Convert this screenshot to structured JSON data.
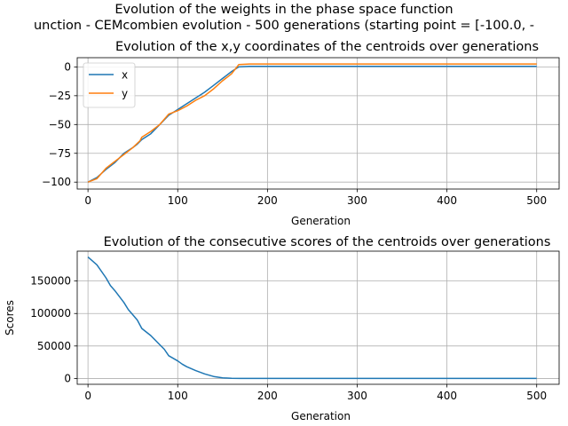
{
  "figure": {
    "title_line1": "Evolution of the weights in the phase space  function",
    "title_line2": "unction - CEMcombien evolution - 500 generations (starting point = [-100.0, -"
  },
  "chart_data": [
    {
      "type": "line",
      "title": "Evolution of the x,y coordinates of the centroids over generations",
      "xlabel": "Generation",
      "ylabel": "",
      "xlim": [
        -12,
        525
      ],
      "ylim": [
        -106,
        8
      ],
      "xticks": [
        0,
        100,
        200,
        300,
        400,
        500
      ],
      "yticks": [
        0,
        -25,
        -50,
        -75,
        -100
      ],
      "grid": true,
      "legend": "top-left",
      "series": [
        {
          "name": "x",
          "color": "#1f77b4",
          "points": [
            [
              0,
              -100
            ],
            [
              10,
              -96
            ],
            [
              20,
              -89
            ],
            [
              30,
              -83
            ],
            [
              40,
              -75
            ],
            [
              50,
              -70
            ],
            [
              55,
              -67
            ],
            [
              60,
              -63
            ],
            [
              70,
              -58
            ],
            [
              80,
              -50
            ],
            [
              90,
              -42
            ],
            [
              100,
              -37
            ],
            [
              110,
              -32
            ],
            [
              120,
              -27
            ],
            [
              130,
              -22
            ],
            [
              140,
              -16
            ],
            [
              150,
              -10
            ],
            [
              160,
              -4
            ],
            [
              168,
              0
            ],
            [
              180,
              0.5
            ],
            [
              250,
              0.5
            ],
            [
              300,
              0.5
            ],
            [
              350,
              0.5
            ],
            [
              400,
              0.5
            ],
            [
              450,
              0.5
            ],
            [
              500,
              0.5
            ]
          ]
        },
        {
          "name": "y",
          "color": "#ff7f0e",
          "points": [
            [
              0,
              -100
            ],
            [
              10,
              -97
            ],
            [
              20,
              -88
            ],
            [
              30,
              -82
            ],
            [
              40,
              -76
            ],
            [
              50,
              -70
            ],
            [
              58,
              -64
            ],
            [
              60,
              -61
            ],
            [
              70,
              -56
            ],
            [
              80,
              -50
            ],
            [
              90,
              -41
            ],
            [
              100,
              -38
            ],
            [
              110,
              -34
            ],
            [
              120,
              -29
            ],
            [
              130,
              -25
            ],
            [
              140,
              -19
            ],
            [
              150,
              -12
            ],
            [
              160,
              -6
            ],
            [
              168,
              2
            ],
            [
              180,
              2.5
            ],
            [
              250,
              2.5
            ],
            [
              300,
              2.5
            ],
            [
              350,
              2.5
            ],
            [
              400,
              2.5
            ],
            [
              450,
              2.5
            ],
            [
              500,
              2.5
            ]
          ]
        }
      ]
    },
    {
      "type": "line",
      "title": "Evolution of the consecutive scores of the centroids over generations",
      "xlabel": "Generation",
      "ylabel": "Scores",
      "xlim": [
        -12,
        525
      ],
      "ylim": [
        -9000,
        196000
      ],
      "xticks": [
        0,
        100,
        200,
        300,
        400,
        500
      ],
      "yticks": [
        0,
        50000,
        100000,
        150000
      ],
      "grid": true,
      "series": [
        {
          "name": "",
          "color": "#1f77b4",
          "points": [
            [
              0,
              187000
            ],
            [
              10,
              175000
            ],
            [
              20,
              155000
            ],
            [
              25,
              143000
            ],
            [
              30,
              135000
            ],
            [
              40,
              117000
            ],
            [
              45,
              106000
            ],
            [
              50,
              98000
            ],
            [
              55,
              90000
            ],
            [
              60,
              77000
            ],
            [
              70,
              66000
            ],
            [
              80,
              52000
            ],
            [
              85,
              45000
            ],
            [
              90,
              35000
            ],
            [
              100,
              27000
            ],
            [
              105,
              22000
            ],
            [
              110,
              18000
            ],
            [
              120,
              12000
            ],
            [
              130,
              7000
            ],
            [
              140,
              3000
            ],
            [
              150,
              1000
            ],
            [
              160,
              200
            ],
            [
              170,
              0
            ],
            [
              200,
              0
            ],
            [
              300,
              0
            ],
            [
              400,
              0
            ],
            [
              500,
              0
            ]
          ]
        }
      ]
    }
  ]
}
